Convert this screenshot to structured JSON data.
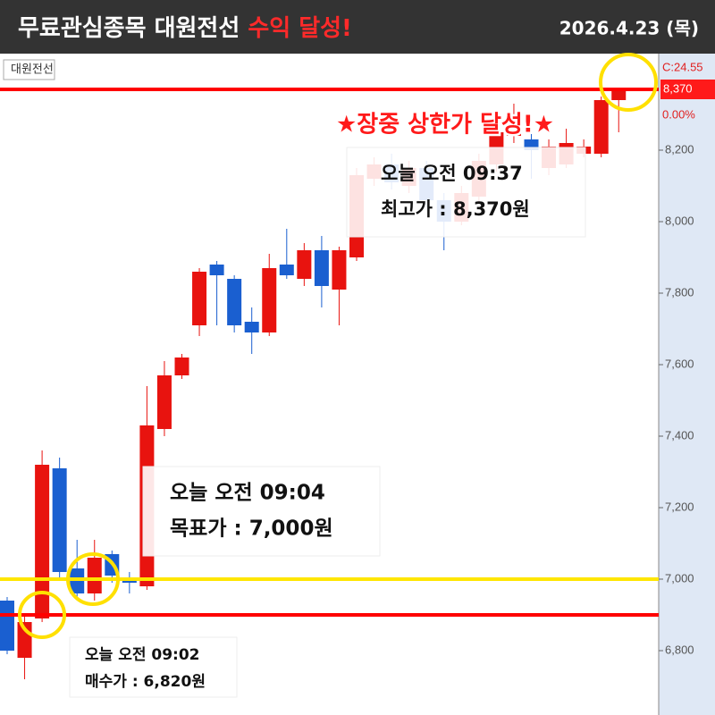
{
  "header": {
    "title": "무료관심종목 대원전선",
    "title_highlight": "수익 달성!",
    "date": "2026.4.23 (목)"
  },
  "chart_data": {
    "type": "candlestick",
    "stock_label": "대원전선",
    "annotation": "★장중 상한가 달성!★",
    "notes": [
      {
        "line1": "오늘 오전 09:37",
        "line2": "최고가 : 8,370원"
      },
      {
        "line1": "오늘 오전 09:04",
        "line2": "목표가 : 7,000원"
      },
      {
        "line1": "오늘 오전 09:02",
        "line2": "매수가 : 6,820원"
      }
    ],
    "up_color": "#e8130f",
    "down_color": "#1a5fd0",
    "open": [
      6940,
      6780,
      6890,
      7310,
      7030,
      6960,
      7070,
      7000,
      6980,
      7420,
      7570,
      7710,
      7880,
      7840,
      7720,
      7690,
      7880,
      7840,
      7920,
      7810,
      7900,
      8120,
      8160,
      8100,
      8150,
      8060,
      8000,
      8070,
      8160,
      8240,
      8230,
      8150,
      8160,
      8190,
      8190,
      8340,
      8370
    ],
    "high": [
      6950,
      6900,
      7360,
      7340,
      7110,
      7110,
      7080,
      7020,
      7540,
      7610,
      7630,
      7870,
      7890,
      7850,
      7760,
      7910,
      7980,
      7940,
      7960,
      7930,
      8150,
      8180,
      8190,
      8170,
      8170,
      8080,
      8100,
      8190,
      8270,
      8330,
      8260,
      8230,
      8260,
      8230,
      8350,
      8370,
      8370
    ],
    "low": [
      6790,
      6720,
      6880,
      7000,
      6950,
      6940,
      6990,
      6960,
      6970,
      7400,
      7560,
      7680,
      7710,
      7690,
      7630,
      7680,
      7840,
      7820,
      7760,
      7710,
      7890,
      8100,
      8090,
      8080,
      8040,
      7920,
      7990,
      8050,
      8140,
      8220,
      8120,
      8130,
      8150,
      8180,
      8180,
      8250,
      8370
    ],
    "close": [
      6800,
      6880,
      7320,
      7020,
      6960,
      7060,
      7010,
      6990,
      7430,
      7570,
      7620,
      7860,
      7850,
      7710,
      7690,
      7870,
      7850,
      7920,
      7820,
      7920,
      8130,
      8160,
      8110,
      8150,
      8060,
      8000,
      8080,
      8170,
      8250,
      8300,
      8200,
      8210,
      8220,
      8210,
      8340,
      8370,
      8370
    ],
    "ref_lines": [
      {
        "value": 8370,
        "color": "#ff0000"
      },
      {
        "value": 7000,
        "color": "#ffe600"
      },
      {
        "value": 6900,
        "color": "#ff0000"
      }
    ],
    "price_marker": {
      "value": 8370,
      "label": "8,370"
    },
    "change_label": "0.00%",
    "c_label": "C:24.55",
    "ylim": [
      6620,
      8470
    ],
    "yticks": [
      {
        "value": 6800,
        "label": "6,800"
      },
      {
        "value": 7000,
        "label": "7,000"
      },
      {
        "value": 7200,
        "label": "7,200"
      },
      {
        "value": 7400,
        "label": "7,400"
      },
      {
        "value": 7600,
        "label": "7,600"
      },
      {
        "value": 7800,
        "label": "7,800"
      },
      {
        "value": 8000,
        "label": "8,000"
      },
      {
        "value": 8200,
        "label": "8,200"
      }
    ]
  }
}
